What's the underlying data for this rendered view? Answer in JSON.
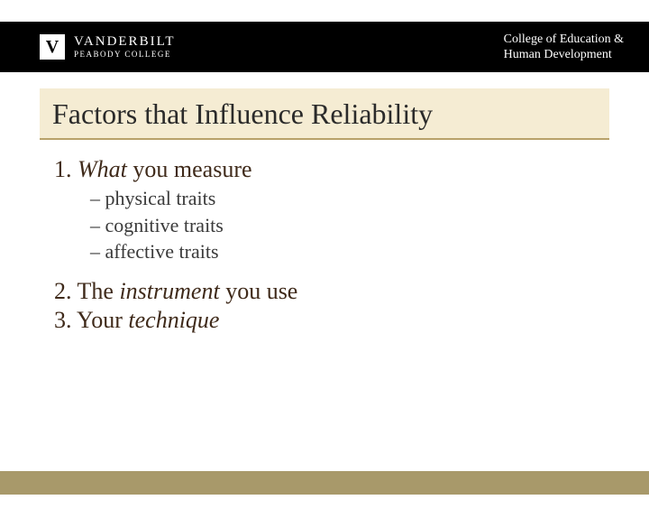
{
  "header": {
    "logo_letter": "V",
    "university": "VANDERBILT",
    "subunit": "PEABODY COLLEGE",
    "college_line1": "College of Education &",
    "college_line2": "Human Development"
  },
  "title": "Factors that Influence Reliability",
  "items": [
    {
      "number": "1.",
      "pre": "",
      "italic": "What",
      "post": " you measure",
      "sub": [
        "– physical traits",
        "– cognitive traits",
        "– affective traits"
      ]
    },
    {
      "number": "2.",
      "pre": "The ",
      "italic": "instrument",
      "post": " you use",
      "sub": []
    },
    {
      "number": "3.",
      "pre": "Your ",
      "italic": "technique",
      "post": "",
      "sub": []
    }
  ],
  "colors": {
    "header_bg": "#000000",
    "title_bg": "#f5ecd3",
    "title_border": "#b8a26a",
    "footer_bg": "#a8996a",
    "body_text": "#3f2a1a"
  }
}
